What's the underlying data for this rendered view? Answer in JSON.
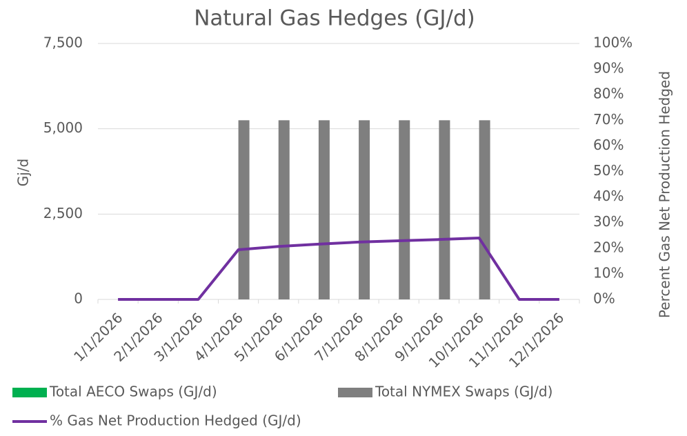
{
  "chart_data": {
    "type": "bar_line",
    "title": "Natural Gas Hedges (GJ/d)",
    "y_label": "Gj/d",
    "y2_label": "Percent Gas Net Production Hedged",
    "categories": [
      "1/1/2026",
      "2/1/2026",
      "3/1/2026",
      "4/1/2026",
      "5/1/2026",
      "6/1/2026",
      "7/1/2026",
      "8/1/2026",
      "9/1/2026",
      "10/1/2026",
      "11/1/2026",
      "12/1/2026"
    ],
    "series": [
      {
        "name": "Total AECO Swaps (GJ/d)",
        "type": "bar",
        "color": "#00b050",
        "values": [
          0,
          0,
          0,
          0,
          0,
          0,
          0,
          0,
          0,
          0,
          0,
          0
        ]
      },
      {
        "name": "Total NYMEX Swaps (GJ/d)",
        "type": "bar",
        "color": "#7f7f7f",
        "values": [
          0,
          0,
          0,
          5250,
          5250,
          5250,
          5250,
          5250,
          5250,
          5250,
          0,
          0
        ]
      },
      {
        "name": "% Gas Net Production Hedged (GJ/d)",
        "type": "line",
        "axis": "y2",
        "color": "#7030a0",
        "values": [
          0,
          0,
          0,
          19.4,
          20.7,
          21.6,
          22.4,
          22.9,
          23.4,
          24.0,
          0,
          0
        ]
      }
    ],
    "ylim": [
      0,
      7500
    ],
    "yticks": [
      0,
      {
        "value": 2500,
        "label": "2,500"
      },
      {
        "value": 5000,
        "label": "5,000"
      },
      {
        "value": 7500,
        "label": "7,500"
      }
    ],
    "y2lim": [
      0,
      100
    ],
    "y2ticks": [
      {
        "value": 0,
        "label": "0%"
      },
      {
        "value": 10,
        "label": "10%"
      },
      {
        "value": 20,
        "label": "20%"
      },
      {
        "value": 30,
        "label": "30%"
      },
      {
        "value": 40,
        "label": "40%"
      },
      {
        "value": 50,
        "label": "50%"
      },
      {
        "value": 60,
        "label": "60%"
      },
      {
        "value": 70,
        "label": "70%"
      },
      {
        "value": 80,
        "label": "80%"
      },
      {
        "value": 90,
        "label": "90%"
      },
      {
        "value": 100,
        "label": "100%"
      }
    ],
    "grid": true
  }
}
